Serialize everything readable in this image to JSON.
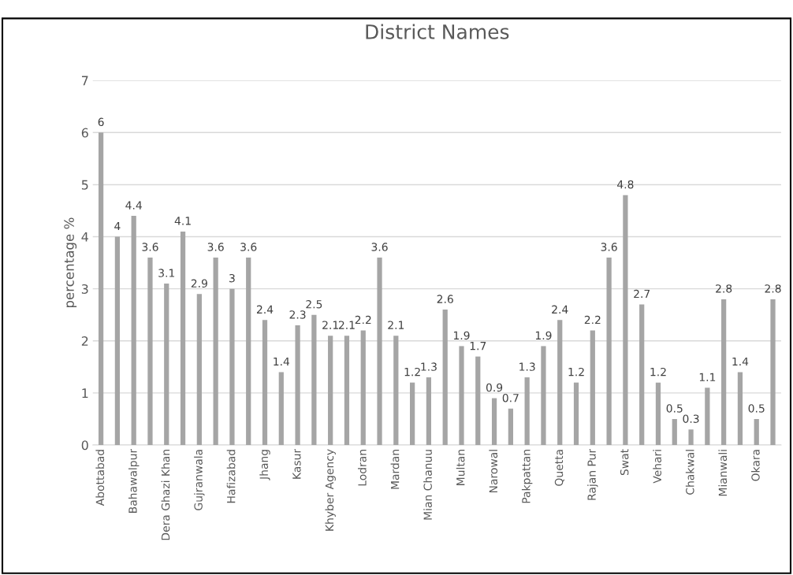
{
  "chart_data": {
    "type": "bar",
    "title": "District Names",
    "ylabel": "percentage %",
    "categories": [
      "Abottabad",
      null,
      "Bahawalpur",
      null,
      "Dera Ghazi Khan",
      null,
      "Gujranwala",
      null,
      "Hafizabad",
      null,
      "Jhang",
      null,
      "Kasur",
      null,
      "Khyber Agency",
      null,
      "Lodran",
      null,
      "Mardan",
      null,
      "Mian Chanuu",
      null,
      "Multan",
      null,
      "Narowal",
      null,
      "Pakpattan",
      null,
      "Quetta",
      null,
      "Rajan Pur",
      null,
      "Swat",
      null,
      "Vehari",
      null,
      "Chakwal",
      null,
      "Mianwali",
      null,
      "Okara",
      null
    ],
    "values": [
      6,
      4,
      4.4,
      3.6,
      3.1,
      4.1,
      2.9,
      3.6,
      3,
      3.6,
      2.4,
      1.4,
      2.3,
      2.5,
      2.1,
      2.1,
      2.2,
      3.6,
      2.1,
      1.2,
      1.3,
      2.6,
      1.9,
      1.7,
      0.9,
      0.7,
      1.3,
      1.9,
      2.4,
      1.2,
      2.2,
      3.6,
      4.8,
      2.7,
      1.2,
      0.5,
      0.3,
      1.1,
      2.8,
      1.4,
      0.5,
      2.8
    ],
    "color": "#a5a5a5",
    "ylim": [
      0,
      7
    ],
    "yticks": [
      0,
      1,
      2,
      3,
      4,
      5,
      6,
      7
    ],
    "grid": "y",
    "data_labels": true,
    "legend": false
  }
}
